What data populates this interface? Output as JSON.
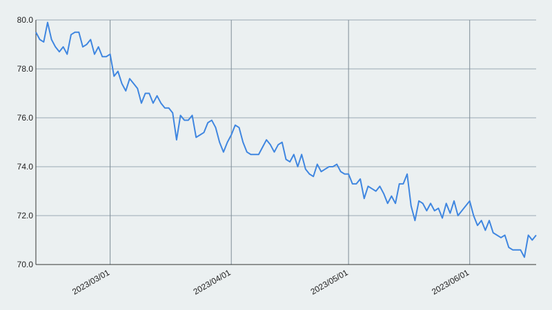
{
  "chart_data": {
    "type": "line",
    "x": [
      "2023-02-10",
      "2023-02-11",
      "2023-02-12",
      "2023-02-13",
      "2023-02-14",
      "2023-02-15",
      "2023-02-16",
      "2023-02-17",
      "2023-02-18",
      "2023-02-19",
      "2023-02-20",
      "2023-02-21",
      "2023-02-22",
      "2023-02-23",
      "2023-02-24",
      "2023-02-25",
      "2023-02-26",
      "2023-02-27",
      "2023-02-28",
      "2023-03-01",
      "2023-03-02",
      "2023-03-03",
      "2023-03-04",
      "2023-03-05",
      "2023-03-06",
      "2023-03-07",
      "2023-03-08",
      "2023-03-09",
      "2023-03-10",
      "2023-03-11",
      "2023-03-12",
      "2023-03-13",
      "2023-03-14",
      "2023-03-15",
      "2023-03-16",
      "2023-03-17",
      "2023-03-18",
      "2023-03-19",
      "2023-03-20",
      "2023-03-21",
      "2023-03-22",
      "2023-03-23",
      "2023-03-24",
      "2023-03-25",
      "2023-03-26",
      "2023-03-27",
      "2023-03-28",
      "2023-03-29",
      "2023-03-30",
      "2023-03-31",
      "2023-04-01",
      "2023-04-02",
      "2023-04-03",
      "2023-04-04",
      "2023-04-05",
      "2023-04-06",
      "2023-04-07",
      "2023-04-08",
      "2023-04-09",
      "2023-04-10",
      "2023-04-11",
      "2023-04-12",
      "2023-04-13",
      "2023-04-14",
      "2023-04-15",
      "2023-04-16",
      "2023-04-17",
      "2023-04-18",
      "2023-04-19",
      "2023-04-20",
      "2023-04-21",
      "2023-04-22",
      "2023-04-23",
      "2023-04-24",
      "2023-04-25",
      "2023-04-26",
      "2023-04-27",
      "2023-04-28",
      "2023-04-29",
      "2023-04-30",
      "2023-05-01",
      "2023-05-02",
      "2023-05-03",
      "2023-05-04",
      "2023-05-05",
      "2023-05-06",
      "2023-05-07",
      "2023-05-08",
      "2023-05-09",
      "2023-05-10",
      "2023-05-11",
      "2023-05-12",
      "2023-05-13",
      "2023-05-14",
      "2023-05-15",
      "2023-05-16",
      "2023-05-17",
      "2023-05-18",
      "2023-05-19",
      "2023-05-20",
      "2023-05-21",
      "2023-05-22",
      "2023-05-23",
      "2023-05-24",
      "2023-05-25",
      "2023-05-26",
      "2023-05-27",
      "2023-05-28",
      "2023-05-29",
      "2023-05-30",
      "2023-05-31",
      "2023-06-01",
      "2023-06-02",
      "2023-06-03",
      "2023-06-04",
      "2023-06-05",
      "2023-06-06",
      "2023-06-07",
      "2023-06-08",
      "2023-06-09",
      "2023-06-10",
      "2023-06-11",
      "2023-06-12",
      "2023-06-13",
      "2023-06-14",
      "2023-06-15",
      "2023-06-16",
      "2023-06-17",
      "2023-06-18"
    ],
    "series": [
      {
        "color": "#3f86e0",
        "values": [
          79.5,
          79.2,
          79.1,
          79.9,
          79.2,
          78.9,
          78.7,
          78.9,
          78.6,
          79.4,
          79.5,
          79.5,
          78.9,
          79.0,
          79.2,
          78.6,
          78.9,
          78.5,
          78.5,
          78.6,
          77.7,
          77.9,
          77.4,
          77.1,
          77.6,
          77.4,
          77.2,
          76.6,
          77.0,
          77.0,
          76.6,
          76.9,
          76.6,
          76.4,
          76.4,
          76.2,
          75.1,
          76.1,
          75.9,
          75.9,
          76.1,
          75.2,
          75.3,
          75.4,
          75.8,
          75.9,
          75.6,
          75.0,
          74.6,
          75.0,
          75.3,
          75.7,
          75.6,
          75.0,
          74.6,
          74.5,
          74.5,
          74.5,
          74.8,
          75.1,
          74.9,
          74.6,
          74.9,
          75.0,
          74.3,
          74.2,
          74.5,
          74.0,
          74.5,
          73.9,
          73.7,
          73.6,
          74.1,
          73.8,
          73.9,
          74.0,
          74.0,
          74.1,
          73.8,
          73.7,
          73.7,
          73.3,
          73.3,
          73.5,
          72.7,
          73.2,
          73.1,
          73.0,
          73.2,
          72.9,
          72.5,
          72.8,
          72.5,
          73.3,
          73.3,
          73.7,
          72.4,
          71.8,
          72.6,
          72.5,
          72.2,
          72.5,
          72.2,
          72.3,
          71.9,
          72.5,
          72.1,
          72.6,
          72.0,
          72.2,
          72.4,
          72.6,
          72.0,
          71.6,
          71.8,
          71.4,
          71.8,
          71.3,
          71.2,
          71.1,
          71.2,
          70.7,
          70.6,
          70.6,
          70.6,
          70.3,
          71.2,
          71.0,
          71.2
        ]
      }
    ],
    "xlim": [
      "2023-02-10",
      "2023-06-18"
    ],
    "xticks": [
      {
        "value": "2023-03-01",
        "label": "2023/03/01"
      },
      {
        "value": "2023-04-01",
        "label": "2023/04/01"
      },
      {
        "value": "2023-05-01",
        "label": "2023/05/01"
      },
      {
        "value": "2023-06-01",
        "label": "2023/06/01"
      }
    ],
    "ylim": [
      70,
      80
    ],
    "yticks": [
      {
        "value": 70,
        "label": "70.0"
      },
      {
        "value": 72,
        "label": "72.0"
      },
      {
        "value": 74,
        "label": "74.0"
      },
      {
        "value": 76,
        "label": "76.0"
      },
      {
        "value": 78,
        "label": "78.0"
      },
      {
        "value": 80,
        "label": "80.0"
      }
    ],
    "grid": true
  }
}
